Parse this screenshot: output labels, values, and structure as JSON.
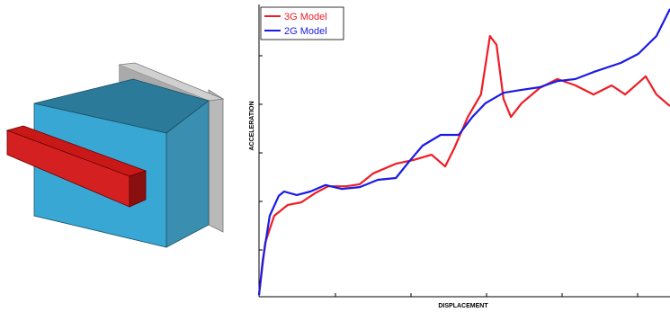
{
  "chart_data": {
    "type": "line",
    "xlabel": "DISPLACEMENT",
    "ylabel": "ACCELERATION",
    "xlim": [
      0,
      100
    ],
    "ylim": [
      0,
      100
    ],
    "legend": "upper left",
    "series": [
      {
        "name": "3G Model",
        "color": "#ee1c25",
        "x": [
          0,
          1.5,
          3.7,
          7.0,
          10.3,
          13.6,
          16.8,
          21.2,
          24.5,
          27.8,
          33.3,
          37.6,
          42.0,
          45.3,
          47.5,
          50.8,
          54.0,
          56.2,
          57.8,
          59.5,
          61.3,
          63.9,
          68.3,
          72.6,
          77.0,
          81.4,
          85.8,
          89.1,
          94.1,
          96.7,
          100
        ],
        "values": [
          0.6,
          18.5,
          27.7,
          31.4,
          32.3,
          35.4,
          37.8,
          37.8,
          38.5,
          42.2,
          45.5,
          46.8,
          48.6,
          44.6,
          50.8,
          61.5,
          69.2,
          89.2,
          86.2,
          67.7,
          61.5,
          66.2,
          71.4,
          74.5,
          72.3,
          69.2,
          72.3,
          69.2,
          75.4,
          69.2,
          65.2
        ]
      },
      {
        "name": "2G Model",
        "color": "#1a1ae6",
        "x": [
          0,
          0.9,
          2.6,
          4.8,
          6.1,
          9.2,
          12.5,
          16.2,
          20.1,
          24.5,
          28.9,
          33.3,
          36.5,
          39.8,
          44.2,
          48.6,
          51.9,
          55.1,
          59.5,
          63.9,
          68.3,
          72.6,
          77.0,
          81.4,
          88.0,
          92.3,
          96.7,
          100
        ],
        "values": [
          0.6,
          12.3,
          27.7,
          34.5,
          36.0,
          34.8,
          36.0,
          38.2,
          36.9,
          37.5,
          40.0,
          40.6,
          46.2,
          51.7,
          55.4,
          55.4,
          61.5,
          66.2,
          69.8,
          70.8,
          71.7,
          73.8,
          74.5,
          76.9,
          80.0,
          83.1,
          89.2,
          98.5
        ]
      }
    ]
  }
}
